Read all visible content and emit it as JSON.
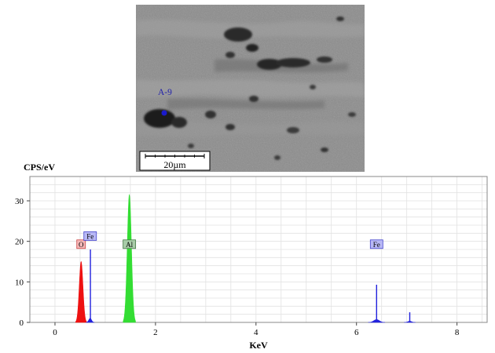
{
  "micrograph": {
    "point_label": "A-9",
    "scale_bar_label": "20µm"
  },
  "colors": {
    "oxygen": "#ee1111",
    "iron": "#2222dd",
    "aluminium": "#33dd33",
    "label_text": "#2222aa"
  },
  "chart_data": {
    "type": "line",
    "title": "",
    "xlabel": "KeV",
    "ylabel": "CPS/eV",
    "xlim": [
      -0.5,
      8.6
    ],
    "ylim": [
      0,
      36
    ],
    "x_ticks": [
      0,
      2,
      4,
      6,
      8
    ],
    "y_ticks": [
      0,
      10,
      20,
      30
    ],
    "grid": true,
    "peaks": [
      {
        "element": "O",
        "x": 0.52,
        "height": 15,
        "width": 0.08,
        "fill": "#ee1111"
      },
      {
        "element": "Fe",
        "x": 0.7,
        "height": 1.0,
        "width": 0.06,
        "fill": "#2222dd"
      },
      {
        "element": "Al",
        "x": 1.48,
        "height": 31.5,
        "width": 0.09,
        "fill": "#33dd33"
      },
      {
        "element": "Fe",
        "x": 6.4,
        "height": 0.7,
        "width": 0.12,
        "fill": "#2222dd"
      },
      {
        "element": "Fe",
        "x": 7.06,
        "height": 0.3,
        "width": 0.08,
        "fill": "#2222dd"
      }
    ],
    "markers": [
      {
        "element": "Fe",
        "x": 0.705,
        "height": 18,
        "color": "#2222dd"
      },
      {
        "element": "Fe",
        "x": 6.4,
        "height": 9.3,
        "color": "#2222dd"
      },
      {
        "element": "Fe",
        "x": 7.06,
        "height": 2.5,
        "color": "#2222dd"
      }
    ],
    "labels": [
      {
        "text": "O",
        "x": 0.52,
        "y": 19.3,
        "bg": "#f5b8b8",
        "border": "#cc4444"
      },
      {
        "text": "Fe",
        "x": 0.7,
        "y": 21.3,
        "bg": "#b8b8f5",
        "border": "#4444cc"
      },
      {
        "text": "Al",
        "x": 1.48,
        "y": 19.3,
        "bg": "#a8cca8",
        "border": "#447744"
      },
      {
        "text": "Fe",
        "x": 6.4,
        "y": 19.3,
        "bg": "#b8b8f5",
        "border": "#4444cc"
      }
    ]
  }
}
